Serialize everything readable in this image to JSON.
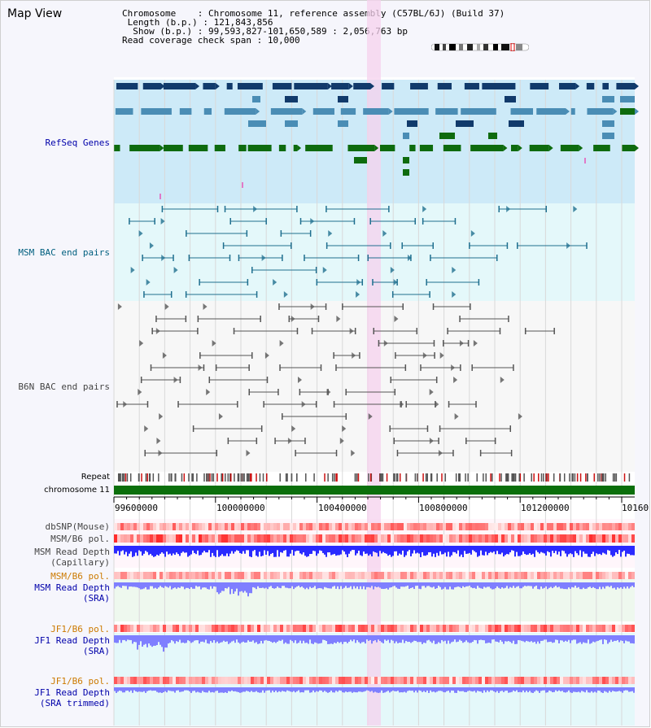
{
  "page": {
    "title": "Map View",
    "info": {
      "chromosome_key": "Chromosome",
      "chromosome_val": "Chromosome 11, reference assembly (C57BL/6J) (Build 37)",
      "length_key": "Length (b.p.)",
      "length_val": "121,843,856",
      "show_key": "Show (b.p.)",
      "show_val": "99,593,827-101,650,589 : 2,056,763 bp",
      "coverage_key": "Read coverage check span",
      "coverage_val": "10,000"
    }
  },
  "tracks": {
    "refseq": "RefSeq Genes",
    "msm_bac": "MSM BAC end pairs",
    "b6n_bac": "B6N BAC end pairs",
    "repeat": "Repeat",
    "chromosome": "chromosome 11",
    "dbsnp": "dbSNP(Mouse)",
    "msm_b6_pol": "MSM/B6 pol.",
    "msm_depth_cap_1": "MSM Read Depth",
    "msm_depth_cap_2": "(Capillary)",
    "msm_b6_pol_sra": "MSM/B6 pol.",
    "msm_depth_sra_1": "MSM Read Depth",
    "msm_depth_sra_2": "(SRA)",
    "jf1_b6_pol": "JF1/B6 pol.",
    "jf1_depth_sra_1": "JF1 Read Depth",
    "jf1_depth_sra_2": "(SRA)",
    "jf1_b6_pol_trim": "JF1/B6 pol.",
    "jf1_depth_trim_1": "JF1 Read Depth",
    "jf1_depth_trim_2": "(SRA trimmed)"
  },
  "axis": {
    "ticks": [
      "99600000",
      "100000000",
      "100400000",
      "100800000",
      "101200000",
      "10160"
    ]
  },
  "colors": {
    "refseq_bg": "#cdeaf8",
    "msm_bg": "#e4f8fa",
    "highlight": "#f6d2ee",
    "gene_dark": "#113a6b",
    "gene_mid": "#4a8db5",
    "gene_green": "#0e6b0e",
    "bac_teal": "#1f6f8f",
    "bac_gray": "#555555",
    "chrom_green": "#0b6f0b",
    "depth_blue": "#2a2aff",
    "depth_light": "#7f7fff",
    "pol_red": "#ff3333"
  }
}
